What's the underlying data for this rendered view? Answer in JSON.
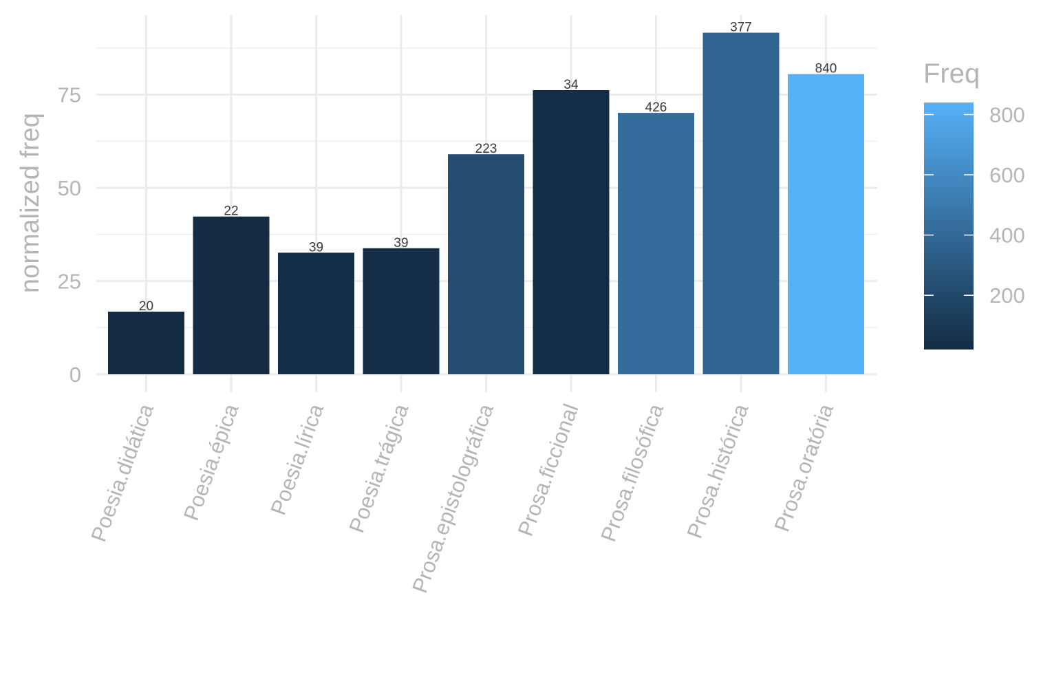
{
  "chart_data": {
    "type": "bar",
    "title": "",
    "xlabel": "",
    "ylabel": "normalized freq",
    "ylim": [
      0,
      92
    ],
    "yticks": [
      0,
      25,
      50,
      75
    ],
    "categories": [
      "Poesia.didática",
      "Poesia.épica",
      "Poesia.lírica",
      "Poesia.trágica",
      "Prosa.epistolográfica",
      "Prosa.ficcional",
      "Prosa.filosófica",
      "Prosa.histórica",
      "Prosa.oratória"
    ],
    "values": [
      16.8,
      42.3,
      32.6,
      33.8,
      59.0,
      76.2,
      70.1,
      91.6,
      80.5
    ],
    "data_labels": [
      "20",
      "22",
      "39",
      "39",
      "223",
      "34",
      "426",
      "377",
      "840"
    ],
    "fill_values": [
      20,
      22,
      39,
      39,
      223,
      34,
      426,
      377,
      840
    ],
    "legend": {
      "title": "Freq",
      "position": "right",
      "ticks": [
        200,
        400,
        600,
        800
      ],
      "range": [
        20,
        840
      ],
      "color_low": "#132B43",
      "color_high": "#56B1F7"
    },
    "grid": true
  }
}
